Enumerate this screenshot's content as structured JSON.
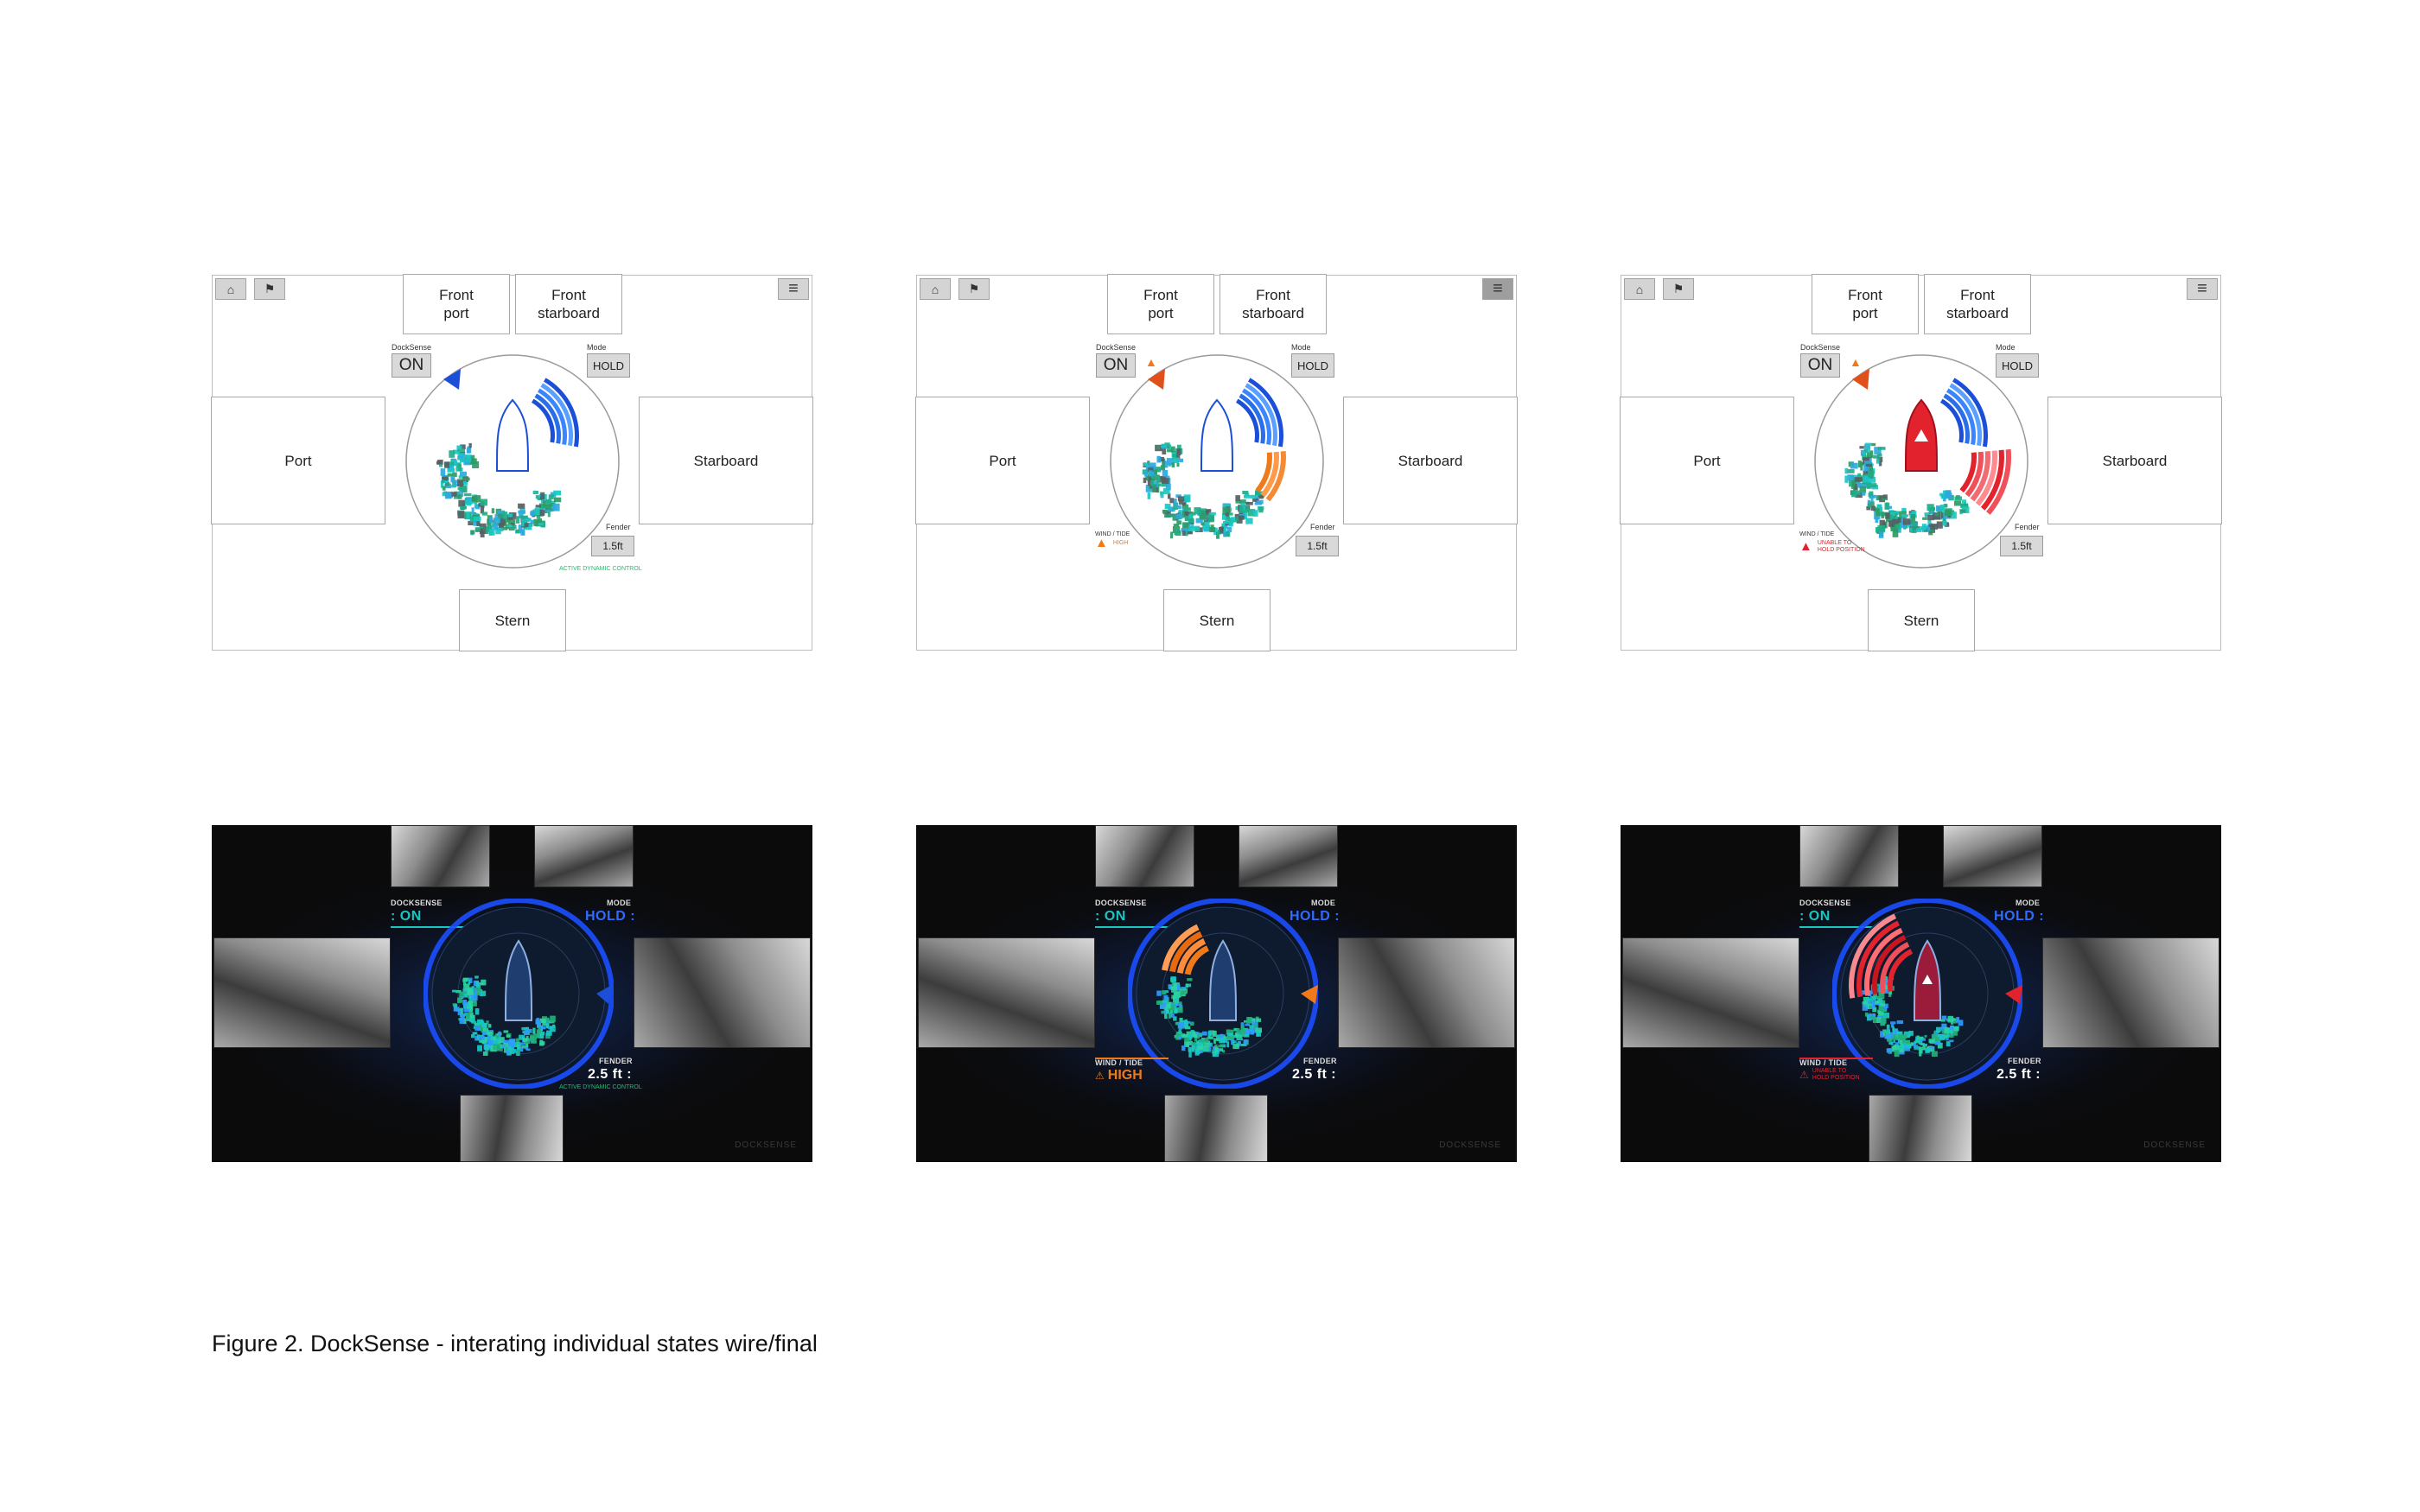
{
  "caption": "Figure 2.  DockSense - interating individual states wire/final",
  "icons": {
    "home": "home-icon",
    "flag": "flag-icon",
    "menu": "menu-icon",
    "warning": "warning-triangle-icon"
  },
  "colors": {
    "blue": "#1c4fd8",
    "orange": "#f07a1a",
    "red": "#e2232e",
    "green": "#2eb872",
    "teal": "#19c7c2"
  },
  "wireframes": [
    {
      "front_port": "Front\nport",
      "front_starboard": "Front\nstarboard",
      "port": "Port",
      "starboard": "Starboard",
      "stern": "Stern",
      "docksense_label": "DockSense",
      "docksense_value": "ON",
      "mode_label": "Mode",
      "mode_value": "HOLD",
      "fender_label": "Fender",
      "fender_value": "1.5ft",
      "status_text": "ACTIVE DYNAMIC CONTROL",
      "state": "normal",
      "menu_active": false
    },
    {
      "front_port": "Front\nport",
      "front_starboard": "Front\nstarboard",
      "port": "Port",
      "starboard": "Starboard",
      "stern": "Stern",
      "docksense_label": "DockSense",
      "docksense_value": "ON",
      "mode_label": "Mode",
      "mode_value": "HOLD",
      "fender_label": "Fender",
      "fender_value": "1.5ft",
      "wind_label": "WIND / TIDE",
      "wind_value": "HIGH",
      "state": "warning",
      "menu_active": true
    },
    {
      "front_port": "Front\nport",
      "front_starboard": "Front\nstarboard",
      "port": "Port",
      "starboard": "Starboard",
      "stern": "Stern",
      "docksense_label": "DockSense",
      "docksense_value": "ON",
      "mode_label": "Mode",
      "mode_value": "HOLD",
      "fender_label": "Fender",
      "fender_value": "1.5ft",
      "wind_label": "WIND / TIDE",
      "wind_value": "UNABLE TO\nHOLD POSITION",
      "state": "critical",
      "menu_active": false
    }
  ],
  "finals": [
    {
      "docksense_label": "DOCKSENSE",
      "docksense_value": ": ON",
      "mode_label": "MODE",
      "mode_value": "HOLD :",
      "fender_label": "FENDER",
      "fender_value": "2.5 ft :",
      "status_text": "ACTIVE DYNAMIC CONTROL",
      "brand": "DOCKSENSE",
      "state": "normal"
    },
    {
      "docksense_label": "DOCKSENSE",
      "docksense_value": ": ON",
      "mode_label": "MODE",
      "mode_value": "HOLD :",
      "fender_label": "FENDER",
      "fender_value": "2.5 ft :",
      "wind_label": "WIND / TIDE",
      "wind_value": "HIGH",
      "brand": "DOCKSENSE",
      "state": "warning"
    },
    {
      "docksense_label": "DOCKSENSE",
      "docksense_value": ": ON",
      "mode_label": "MODE",
      "mode_value": "HOLD :",
      "fender_label": "FENDER",
      "fender_value": "2.5 ft :",
      "wind_label": "WIND / TIDE",
      "wind_value": "UNABLE TO\nHOLD POSITION",
      "brand": "DOCKSENSE",
      "state": "critical"
    }
  ]
}
